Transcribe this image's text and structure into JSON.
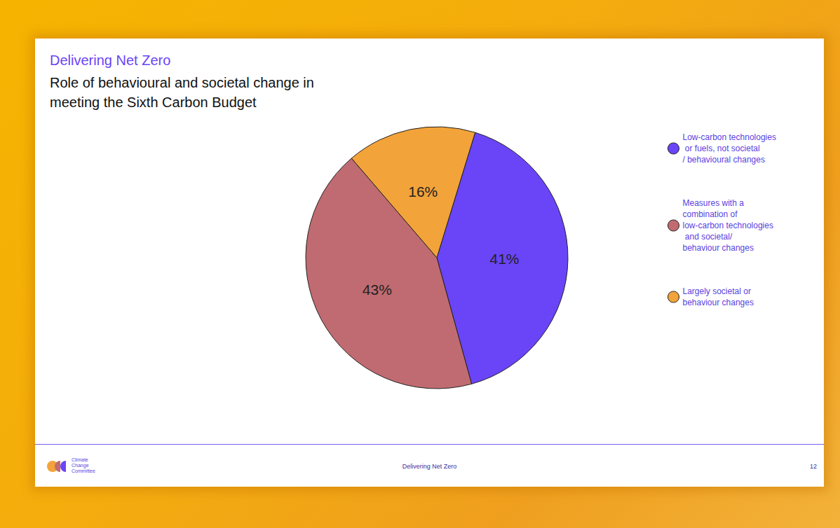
{
  "chart_data": {
    "type": "pie",
    "title": "Delivering Net Zero",
    "subtitle": "Role of behavioural and societal change in meeting the Sixth Carbon Budget",
    "categories": [
      "Low-carbon technologies or fuels, not societal/ behavioural changes",
      "Measures with a combination of low-carbon technologies and societal/ behaviour changes",
      "Largely societal or behaviour changes"
    ],
    "values": [
      41,
      43,
      16
    ],
    "value_labels": [
      "41%",
      "43%",
      "16%"
    ],
    "colors": [
      "#6a44f7",
      "#c06b71",
      "#f2a33a"
    ],
    "data_labels": true,
    "legend": "right"
  },
  "footer": {
    "logo": [
      "Climate",
      "Change",
      "Committee"
    ],
    "center": "Delivering Net Zero",
    "page": "12"
  }
}
